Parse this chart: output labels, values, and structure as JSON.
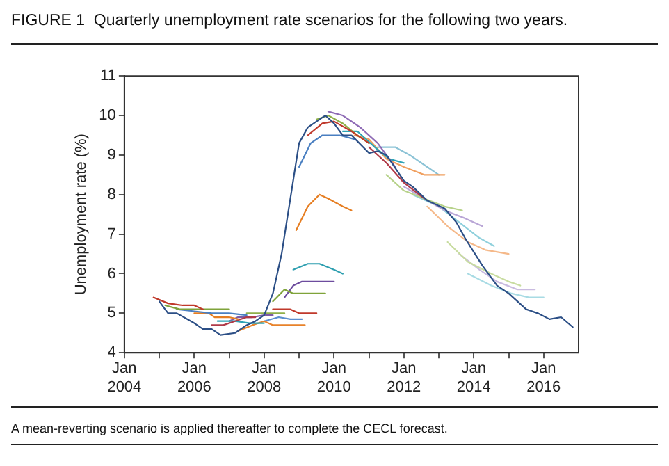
{
  "chart_data": {
    "type": "line",
    "title": "FIGURE 1  Quarterly unemployment rate scenarios for the following two years.",
    "ylabel": "Unemployment rate (%)",
    "annotations": [
      "A mean-reverting scenario is applied thereafter to complete the CECL forecast."
    ],
    "xlim": [
      "2004-01",
      "2017-01"
    ],
    "ylim": [
      4,
      11
    ],
    "xticks": [
      {
        "value": "2004-01",
        "label": "Jan 2004"
      },
      {
        "value": "2005-01",
        "label": null
      },
      {
        "value": "2006-01",
        "label": "Jan 2006"
      },
      {
        "value": "2007-01",
        "label": null
      },
      {
        "value": "2008-01",
        "label": "Jan 2008"
      },
      {
        "value": "2009-01",
        "label": null
      },
      {
        "value": "2010-01",
        "label": "Jan 2010"
      },
      {
        "value": "2011-01",
        "label": null
      },
      {
        "value": "2012-01",
        "label": "Jan 2012"
      },
      {
        "value": "2013-01",
        "label": null
      },
      {
        "value": "2014-01",
        "label": "Jan 2014"
      },
      {
        "value": "2015-01",
        "label": null
      },
      {
        "value": "2016-01",
        "label": "Jan 2016"
      }
    ],
    "yticks": [
      4,
      5,
      6,
      7,
      8,
      9,
      10,
      11
    ],
    "grid": false,
    "legend": false,
    "marker": "none",
    "line_style": "solid",
    "series": [
      {
        "color": "#2c4f86",
        "x": [
          "2005-01",
          "2005-04",
          "2005-07",
          "2006-01",
          "2006-04",
          "2006-07",
          "2006-10",
          "2007-03",
          "2007-07",
          "2007-10",
          "2008-01",
          "2008-04",
          "2008-07",
          "2008-10",
          "2009-01",
          "2009-04",
          "2009-10",
          "2010-01",
          "2010-04",
          "2010-07",
          "2011-01",
          "2011-04",
          "2011-07",
          "2012-01",
          "2012-04",
          "2012-09",
          "2013-03",
          "2013-07",
          "2013-10",
          "2014-04",
          "2014-09",
          "2015-01",
          "2015-07",
          "2015-11",
          "2016-03",
          "2016-07",
          "2016-11"
        ],
        "values": [
          5.3,
          5.0,
          5.0,
          4.75,
          4.6,
          4.6,
          4.45,
          4.5,
          4.7,
          4.8,
          4.95,
          5.5,
          6.5,
          7.9,
          9.3,
          9.7,
          10.0,
          9.8,
          9.5,
          9.5,
          9.05,
          9.1,
          9.0,
          8.35,
          8.2,
          7.85,
          7.65,
          7.3,
          6.9,
          6.2,
          5.7,
          5.5,
          5.1,
          5.0,
          4.85,
          4.9,
          4.65
        ]
      },
      {
        "color": "#c0392b",
        "x": [
          "2004-11",
          "2005-04",
          "2005-09",
          "2006-01",
          "2006-04"
        ],
        "values": [
          5.4,
          5.25,
          5.2,
          5.2,
          5.1
        ]
      },
      {
        "color": "#7fa33a",
        "x": [
          "2005-03",
          "2005-08",
          "2006-03",
          "2006-10",
          "2007-01"
        ],
        "values": [
          5.2,
          5.1,
          5.1,
          5.1,
          5.1
        ]
      },
      {
        "color": "#4a7fc1",
        "x": [
          "2005-07",
          "2006-01",
          "2006-07",
          "2007-01",
          "2007-07"
        ],
        "values": [
          5.1,
          5.05,
          5.0,
          5.0,
          4.95
        ]
      },
      {
        "color": "#e67e22",
        "x": [
          "2006-01",
          "2006-06",
          "2006-08",
          "2007-01",
          "2007-04"
        ],
        "values": [
          5.0,
          5.0,
          4.9,
          4.9,
          4.85
        ]
      },
      {
        "color": "#b03a48",
        "x": [
          "2006-07",
          "2006-11",
          "2007-03",
          "2007-07",
          "2007-10"
        ],
        "values": [
          4.7,
          4.7,
          4.8,
          4.9,
          4.9
        ]
      },
      {
        "color": "#2ea3b5",
        "x": [
          "2006-09",
          "2007-03",
          "2007-08",
          "2008-01"
        ],
        "values": [
          4.8,
          4.8,
          4.75,
          4.75
        ]
      },
      {
        "color": "#7d5ba6",
        "x": [
          "2007-01",
          "2007-04",
          "2007-09",
          "2008-01",
          "2008-04"
        ],
        "values": [
          4.8,
          4.9,
          4.9,
          4.95,
          4.95
        ]
      },
      {
        "color": "#e8822a",
        "x": [
          "2007-04",
          "2007-09",
          "2008-01",
          "2008-04",
          "2008-11",
          "2009-03"
        ],
        "values": [
          4.55,
          4.7,
          4.8,
          4.7,
          4.7,
          4.7
        ]
      },
      {
        "color": "#8fb04a",
        "x": [
          "2007-07",
          "2007-11",
          "2008-04",
          "2008-08"
        ],
        "values": [
          5.0,
          5.0,
          5.0,
          5.0
        ]
      },
      {
        "color": "#5b8fd0",
        "x": [
          "2008-01",
          "2008-06",
          "2008-10",
          "2009-02"
        ],
        "values": [
          4.8,
          4.9,
          4.85,
          4.85
        ]
      },
      {
        "color": "#c0392b",
        "x": [
          "2008-04",
          "2008-10",
          "2009-01",
          "2009-07"
        ],
        "values": [
          5.1,
          5.1,
          5.0,
          5.0
        ]
      },
      {
        "color": "#7fa33a",
        "x": [
          "2008-04",
          "2008-08",
          "2008-11",
          "2009-04",
          "2009-10"
        ],
        "values": [
          5.3,
          5.6,
          5.5,
          5.5,
          5.5
        ]
      },
      {
        "color": "#6d4c9e",
        "x": [
          "2008-08",
          "2008-11",
          "2009-02",
          "2009-08",
          "2010-01"
        ],
        "values": [
          5.4,
          5.7,
          5.8,
          5.8,
          5.8
        ]
      },
      {
        "color": "#2e9fb0",
        "x": [
          "2008-11",
          "2009-04",
          "2009-08",
          "2010-01",
          "2010-04"
        ],
        "values": [
          6.1,
          6.25,
          6.25,
          6.1,
          6.0
        ]
      },
      {
        "color": "#e67e22",
        "x": [
          "2008-12",
          "2009-04",
          "2009-08",
          "2009-11",
          "2010-04",
          "2010-07"
        ],
        "values": [
          7.1,
          7.7,
          8.0,
          7.9,
          7.7,
          7.6
        ]
      },
      {
        "color": "#4a7fc1",
        "x": [
          "2009-01",
          "2009-05",
          "2009-09",
          "2010-03",
          "2010-08"
        ],
        "values": [
          8.7,
          9.3,
          9.5,
          9.5,
          9.4
        ]
      },
      {
        "color": "#c0392b",
        "x": [
          "2009-04",
          "2009-09",
          "2010-01",
          "2010-07",
          "2011-01"
        ],
        "values": [
          9.5,
          9.8,
          9.85,
          9.6,
          9.3
        ]
      },
      {
        "color": "#8fb04a",
        "x": [
          "2009-07",
          "2009-11",
          "2010-04",
          "2010-09",
          "2011-01"
        ],
        "values": [
          9.9,
          10.0,
          9.8,
          9.5,
          9.3
        ]
      },
      {
        "color": "#8e6bb5",
        "x": [
          "2009-11",
          "2010-04",
          "2010-10",
          "2011-04",
          "2011-10"
        ],
        "values": [
          10.1,
          10.0,
          9.7,
          9.3,
          8.7
        ]
      },
      {
        "color": "#2ea3b5",
        "x": [
          "2010-04",
          "2010-09",
          "2011-03",
          "2011-08",
          "2012-01"
        ],
        "values": [
          9.6,
          9.6,
          9.2,
          8.9,
          8.8
        ]
      },
      {
        "color": "#f0a060",
        "x": [
          "2010-08",
          "2011-01",
          "2011-07",
          "2012-01",
          "2012-08",
          "2013-03"
        ],
        "values": [
          9.5,
          9.4,
          8.9,
          8.7,
          8.5,
          8.5
        ]
      },
      {
        "color": "#8cc3d6",
        "x": [
          "2011-04",
          "2011-10",
          "2012-03",
          "2012-09",
          "2013-01"
        ],
        "values": [
          9.2,
          9.2,
          9.0,
          8.7,
          8.5
        ]
      },
      {
        "color": "#b03a48",
        "x": [
          "2011-01",
          "2011-07",
          "2012-01",
          "2012-08"
        ],
        "values": [
          9.2,
          8.8,
          8.3,
          7.9
        ]
      },
      {
        "color": "#b7d28a",
        "x": [
          "2011-07",
          "2012-01",
          "2012-08",
          "2013-03",
          "2013-09"
        ],
        "values": [
          8.5,
          8.1,
          7.9,
          7.7,
          7.6
        ]
      },
      {
        "color": "#b9a6d6",
        "x": [
          "2012-01",
          "2012-08",
          "2013-03",
          "2013-10",
          "2014-04"
        ],
        "values": [
          8.2,
          7.9,
          7.6,
          7.4,
          7.2
        ]
      },
      {
        "color": "#8fd0dc",
        "x": [
          "2012-04",
          "2013-01",
          "2013-08",
          "2014-03",
          "2014-08"
        ],
        "values": [
          8.0,
          7.7,
          7.3,
          6.9,
          6.7
        ]
      },
      {
        "color": "#f5b98a",
        "x": [
          "2012-09",
          "2013-04",
          "2013-11",
          "2014-05",
          "2015-01"
        ],
        "values": [
          7.7,
          7.2,
          6.8,
          6.6,
          6.5
        ]
      },
      {
        "color": "#c8dca0",
        "x": [
          "2013-04",
          "2013-11",
          "2014-07",
          "2015-01",
          "2015-05"
        ],
        "values": [
          6.8,
          6.3,
          6.0,
          5.8,
          5.7
        ]
      },
      {
        "color": "#c9bbe0",
        "x": [
          "2013-08",
          "2014-03",
          "2014-09",
          "2015-04",
          "2015-10"
        ],
        "values": [
          6.5,
          6.1,
          5.8,
          5.6,
          5.6
        ]
      },
      {
        "color": "#a8dbe4",
        "x": [
          "2013-11",
          "2014-07",
          "2015-02",
          "2015-08",
          "2016-01"
        ],
        "values": [
          6.0,
          5.7,
          5.5,
          5.4,
          5.4
        ]
      }
    ]
  }
}
